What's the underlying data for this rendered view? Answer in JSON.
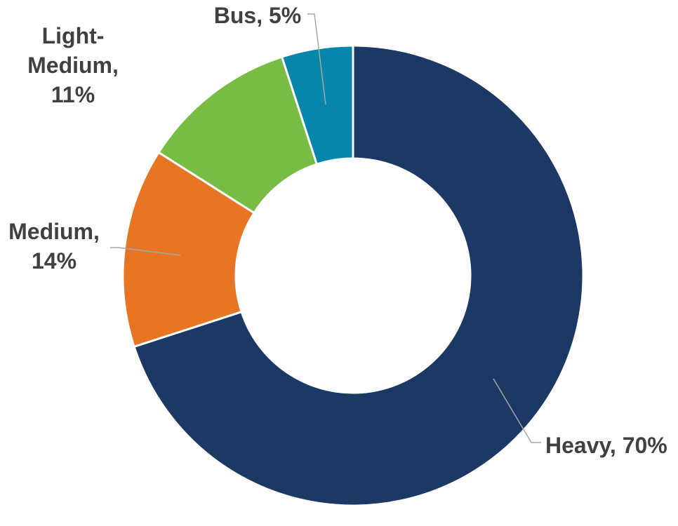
{
  "chart_data": {
    "type": "pie",
    "variant": "donut",
    "title": "",
    "legend": "none",
    "slices": [
      {
        "name": "Heavy",
        "value": 70,
        "color": "#1b3964",
        "label_lines": [
          "Heavy, 70%"
        ]
      },
      {
        "name": "Medium",
        "value": 14,
        "color": "#e87524",
        "label_lines": [
          "Medium,",
          "14%"
        ]
      },
      {
        "name": "Light-Medium",
        "value": 11,
        "color": "#79bc43",
        "label_lines": [
          "Light-",
          "Medium,",
          "11%"
        ]
      },
      {
        "name": "Bus",
        "value": 5,
        "color": "#0586aa",
        "label_lines": [
          "Bus, 5%"
        ]
      }
    ]
  }
}
